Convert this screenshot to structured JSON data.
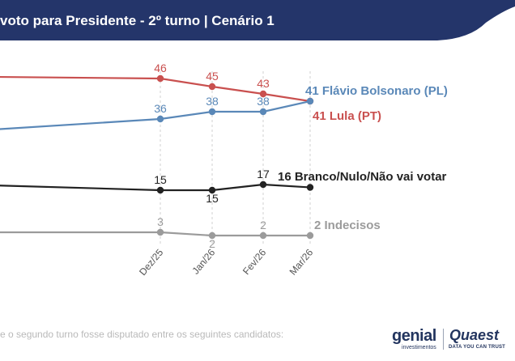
{
  "header": {
    "title": "voto para Presidente - 2º turno | Cenário 1",
    "band_color": "#24356a",
    "accent_color": "#ffffff"
  },
  "footnote": "e o segundo turno fosse disputado entre os seguintes candidatos:",
  "brands": {
    "genial": "genial",
    "genial_sub": "investimentos",
    "quaest": "Quaest",
    "quaest_tag": "DATA YOU CAN TRUST"
  },
  "chart_data": {
    "type": "line",
    "title": "",
    "xlabel": "",
    "ylabel": "",
    "ylim": [
      0,
      50
    ],
    "categories": [
      "Dez/25",
      "Jan/26",
      "Fev/26",
      "Mar/26"
    ],
    "grid": "vertical dashed guide per labeled month",
    "series": [
      {
        "key": "lula",
        "end_label": "41 Lula (PT)",
        "color": "#c9504f",
        "label_position": "above",
        "values": [
          46,
          45,
          43,
          41
        ],
        "point_labels": [
          "46",
          "45",
          "43",
          ""
        ]
      },
      {
        "key": "flavio",
        "end_label": "41 Flávio Bolsonaro (PL)",
        "color": "#5a88b8",
        "label_position": "above",
        "values": [
          36,
          38,
          38,
          41
        ],
        "point_labels": [
          "36",
          "38",
          "38",
          ""
        ]
      },
      {
        "key": "branco",
        "end_label": "16 Branco/Nulo/Não vai votar",
        "color": "#222222",
        "label_position": "mixed",
        "values": [
          15,
          15,
          17,
          16
        ],
        "point_labels": [
          "15",
          "15",
          "17",
          ""
        ]
      },
      {
        "key": "indecisos",
        "end_label": "2 Indecisos",
        "color": "#9b9b9b",
        "label_position": "mixed",
        "values": [
          3,
          2,
          2,
          2
        ],
        "point_labels": [
          "3",
          "2",
          "2",
          ""
        ]
      }
    ]
  }
}
